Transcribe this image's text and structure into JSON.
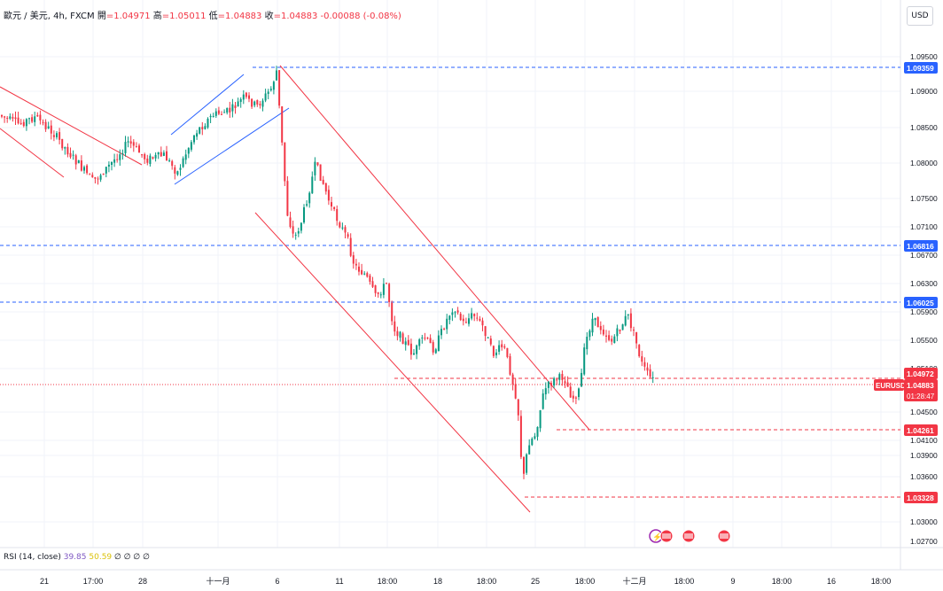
{
  "header": {
    "symbol": "歐元 / 美元, 4h, FXCM",
    "open_label": "開",
    "open": "=1.04971",
    "high_label": "高",
    "high": "=1.05011",
    "low_label": "低",
    "low": "=1.04883",
    "close_label": "收",
    "close": "=1.04883",
    "change": "-0.00088 (-0.08%)"
  },
  "currency_button": "USD",
  "colors": {
    "up": "#089981",
    "down": "#F23645",
    "blue_line": "#2962FF",
    "red_line": "#F23645"
  },
  "price_axis": {
    "ticks": [
      "1.09500",
      "1.09000",
      "1.08500",
      "1.08000",
      "1.07500",
      "1.07100",
      "1.06700",
      "1.06300",
      "1.05900",
      "1.05500",
      "1.05100",
      "1.04500",
      "1.04100",
      "1.03900",
      "1.03600",
      "1.03000",
      "1.02700"
    ],
    "tags": [
      {
        "label": "1.09359",
        "color": "#2962FF"
      },
      {
        "label": "1.06816",
        "color": "#2962FF"
      },
      {
        "label": "1.06025",
        "color": "#2962FF"
      },
      {
        "label": "1.04972",
        "color": "#F23645"
      },
      {
        "label": "1.04261",
        "color": "#F23645"
      },
      {
        "label": "1.03328",
        "color": "#F23645"
      }
    ],
    "last": {
      "symbol": "EURUSD",
      "price": "1.04883",
      "countdown": "01:28:47",
      "color": "#F23645"
    }
  },
  "time_axis": [
    "21",
    "17:00",
    "28",
    "十一月",
    "6",
    "11",
    "18:00",
    "18",
    "18:00",
    "25",
    "18:00",
    "十二月",
    "18:00",
    "9",
    "18:00",
    "16",
    "18:00"
  ],
  "rsi": {
    "label": "RSI (14, close)",
    "value1": "39.85",
    "value2": "50.59",
    "placeholders": "∅ ∅ ∅ ∅"
  },
  "chart_data": {
    "type": "candlestick",
    "symbol": "EURUSD",
    "interval": "4h",
    "y_range": [
      1.027,
      1.095
    ],
    "horizontal_levels": [
      1.09359,
      1.06816,
      1.06025,
      1.04972,
      1.04261,
      1.03328
    ],
    "series": [
      {
        "date": "Oct 21",
        "close": 1.0862
      },
      {
        "date": "Oct 24",
        "close": 1.0795
      },
      {
        "date": "Oct 28",
        "close": 1.081
      },
      {
        "date": "Oct 31",
        "close": 1.0882
      },
      {
        "date": "Nov 5",
        "close": 1.0935
      },
      {
        "date": "Nov 6",
        "close": 1.073
      },
      {
        "date": "Nov 8",
        "close": 1.08
      },
      {
        "date": "Nov 12",
        "close": 1.0615
      },
      {
        "date": "Nov 14",
        "close": 1.054
      },
      {
        "date": "Nov 19",
        "close": 1.059
      },
      {
        "date": "Nov 22",
        "close": 1.0335
      },
      {
        "date": "Nov 26",
        "close": 1.049
      },
      {
        "date": "Nov 29",
        "close": 1.0575
      },
      {
        "date": "Dec 2",
        "close": 1.0488
      }
    ]
  }
}
